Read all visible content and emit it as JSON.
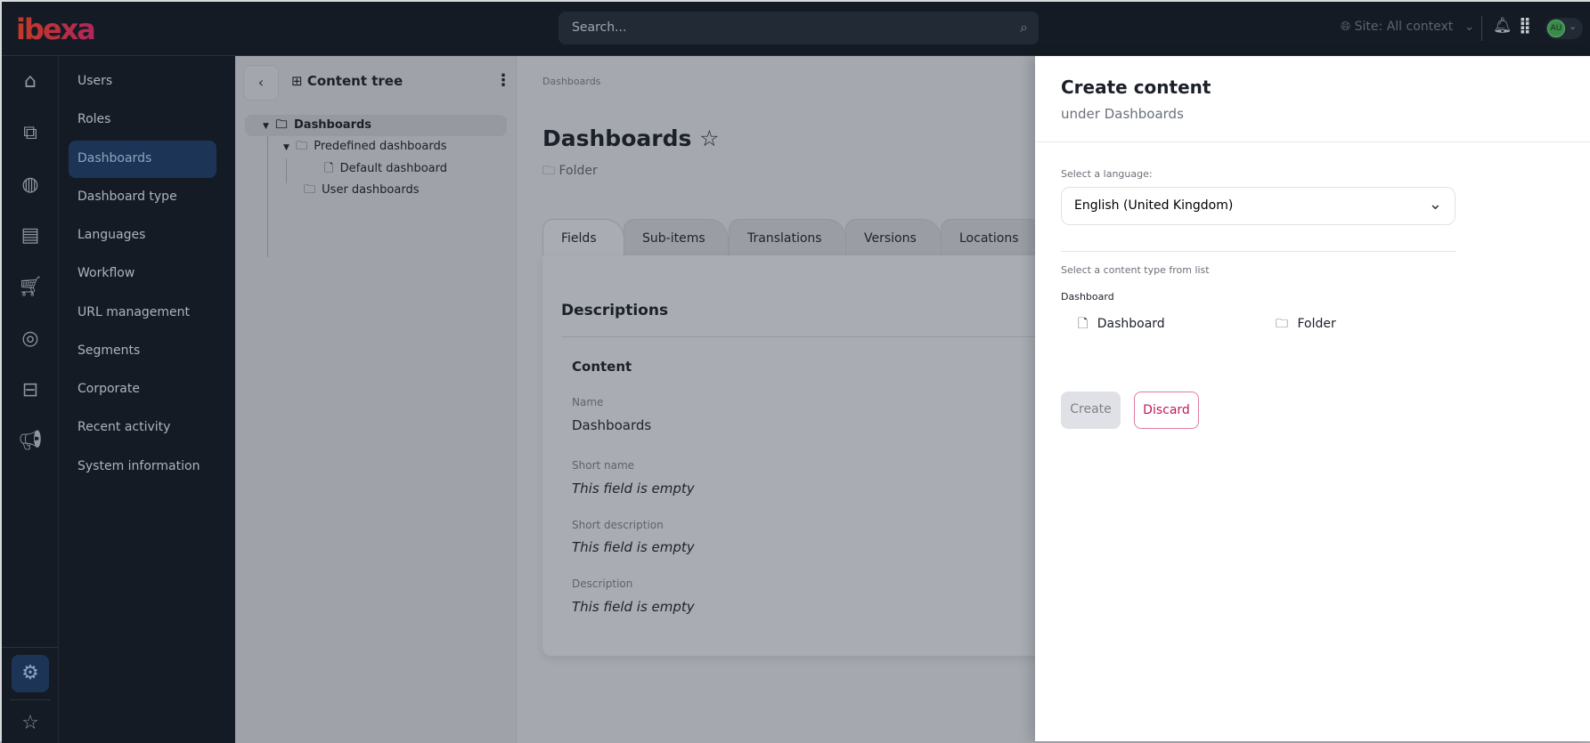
{
  "header": {
    "logo": "ibexa",
    "search_placeholder": "Search...",
    "site_context": "Site: All context",
    "avatar_initials": "AU"
  },
  "rail": {
    "icons": [
      "home-icon",
      "structure-icon",
      "globe-icon",
      "content-icon",
      "cart-icon",
      "target-user-icon",
      "badge-icon",
      "megaphone-icon"
    ],
    "settings_icon": "gear-icon",
    "bookmarks_icon": "star-icon"
  },
  "subnav": {
    "items": [
      "Users",
      "Roles",
      "Dashboards",
      "Dashboard type",
      "Languages",
      "Workflow",
      "URL management",
      "Segments",
      "Corporate",
      "Recent activity",
      "System information"
    ],
    "active": "Dashboards"
  },
  "tree": {
    "title": "Content tree",
    "nodes": [
      {
        "label": "Dashboards",
        "icon": "folder",
        "level": 0,
        "expanded": true
      },
      {
        "label": "Predefined dashboards",
        "icon": "folder",
        "level": 1,
        "expanded": true
      },
      {
        "label": "Default dashboard",
        "icon": "file",
        "level": 2
      },
      {
        "label": "User dashboards",
        "icon": "folder",
        "level": 1
      }
    ]
  },
  "main": {
    "breadcrumb": "Dashboards",
    "title": "Dashboards",
    "content_type": "Folder",
    "tabs": [
      "Fields",
      "Sub-items",
      "Translations",
      "Versions",
      "Locations"
    ],
    "active_tab": "Fields",
    "section": "Descriptions",
    "group": "Content",
    "fields": [
      {
        "label": "Name",
        "value": "Dashboards",
        "empty": false
      },
      {
        "label": "Short name",
        "value": "This field is empty",
        "empty": true
      },
      {
        "label": "Short description",
        "value": "This field is empty",
        "empty": true
      },
      {
        "label": "Description",
        "value": "This field is empty",
        "empty": true
      }
    ]
  },
  "panel": {
    "title": "Create content",
    "subtitle": "under Dashboards",
    "language_label": "Select a language:",
    "language_value": "English (United Kingdom)",
    "type_label": "Select a content type from list",
    "group": "Dashboard",
    "types": [
      {
        "label": "Dashboard",
        "icon": "file"
      },
      {
        "label": "Folder",
        "icon": "folder"
      }
    ],
    "create": "Create",
    "discard": "Discard"
  },
  "colors": {
    "accent": "#c2185b",
    "active_nav": "#1c3557",
    "header": "#151b25"
  }
}
